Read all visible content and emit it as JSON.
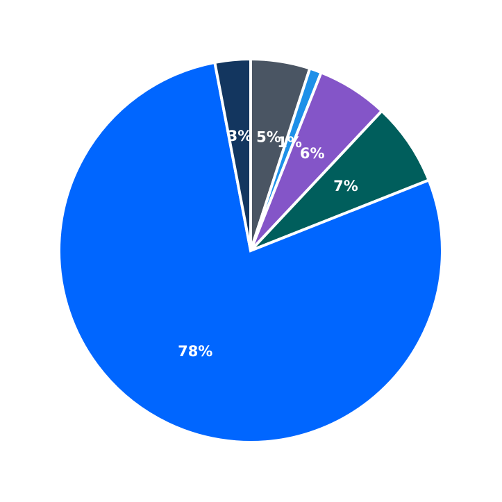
{
  "chart_data": {
    "type": "pie",
    "title": "",
    "legend": "none",
    "start_angle_deg": 90,
    "direction": "clockwise",
    "slices": [
      {
        "value": 5,
        "label": "5%",
        "color": "#4a5563"
      },
      {
        "value": 1,
        "label": "1%",
        "color": "#1e90e8"
      },
      {
        "value": 6,
        "label": "6%",
        "color": "#8455c8"
      },
      {
        "value": 7,
        "label": "7%",
        "color": "#005e5c"
      },
      {
        "value": 78,
        "label": "78%",
        "color": "#0066ff"
      },
      {
        "value": 3,
        "label": "3%",
        "color": "#13365f"
      }
    ]
  }
}
